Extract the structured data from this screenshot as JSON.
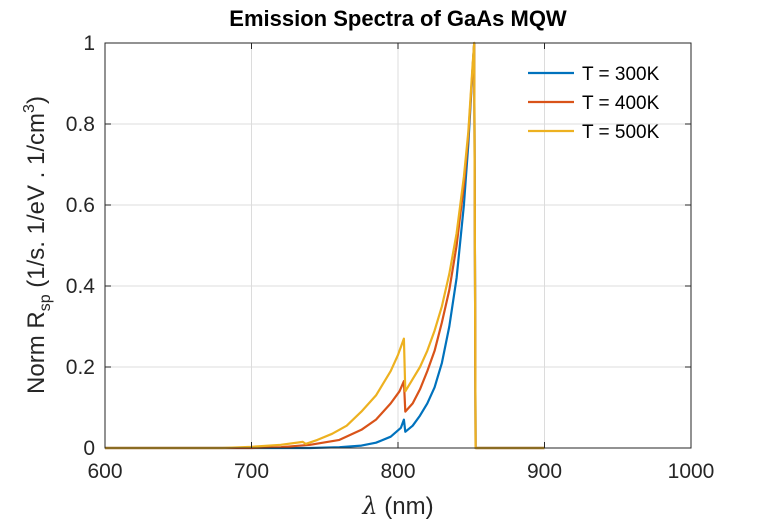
{
  "chart_data": {
    "type": "line",
    "title": "Emission Spectra of GaAs MQW",
    "xlabel": {
      "symbol": "λ",
      "text": " (nm)"
    },
    "ylabel": {
      "main": "Norm R",
      "sub": "sp",
      "units": "  (1/s. 1/eV . 1/cm",
      "units_sup": "3",
      "units_end": ")"
    },
    "xlim": [
      600,
      1000
    ],
    "ylim": [
      0,
      1
    ],
    "xticks": [
      600,
      700,
      800,
      900,
      1000
    ],
    "yticks": [
      0,
      0.2,
      0.4,
      0.6,
      0.8,
      1
    ],
    "ytick_labels": [
      "0",
      "0.2",
      "0.4",
      "0.6",
      "0.8",
      "1"
    ],
    "grid": true,
    "legend_position": "top-right",
    "series": [
      {
        "name": "T = 300K",
        "color": "#0072BD",
        "points": [
          [
            600,
            0
          ],
          [
            700,
            0
          ],
          [
            740,
            0
          ],
          [
            760,
            0.002
          ],
          [
            775,
            0.006
          ],
          [
            785,
            0.013
          ],
          [
            795,
            0.028
          ],
          [
            802,
            0.05
          ],
          [
            804,
            0.07
          ],
          [
            805,
            0.04
          ],
          [
            810,
            0.055
          ],
          [
            815,
            0.08
          ],
          [
            820,
            0.11
          ],
          [
            825,
            0.15
          ],
          [
            830,
            0.21
          ],
          [
            835,
            0.3
          ],
          [
            840,
            0.42
          ],
          [
            845,
            0.6
          ],
          [
            848,
            0.75
          ],
          [
            851,
            0.94
          ],
          [
            852,
            1.0
          ],
          [
            853,
            0
          ],
          [
            900,
            0
          ]
        ]
      },
      {
        "name": "T = 400K",
        "color": "#D95319",
        "points": [
          [
            600,
            0
          ],
          [
            700,
            0
          ],
          [
            720,
            0.002
          ],
          [
            740,
            0.008
          ],
          [
            760,
            0.02
          ],
          [
            775,
            0.045
          ],
          [
            785,
            0.07
          ],
          [
            795,
            0.11
          ],
          [
            801,
            0.14
          ],
          [
            804,
            0.165
          ],
          [
            805,
            0.09
          ],
          [
            810,
            0.11
          ],
          [
            815,
            0.145
          ],
          [
            820,
            0.19
          ],
          [
            825,
            0.24
          ],
          [
            830,
            0.31
          ],
          [
            835,
            0.39
          ],
          [
            840,
            0.5
          ],
          [
            845,
            0.65
          ],
          [
            848,
            0.77
          ],
          [
            851,
            0.94
          ],
          [
            852,
            1.0
          ],
          [
            853,
            0
          ],
          [
            900,
            0
          ]
        ]
      },
      {
        "name": "T = 500K",
        "color": "#EDB120",
        "points": [
          [
            600,
            0
          ],
          [
            680,
            0
          ],
          [
            700,
            0.003
          ],
          [
            720,
            0.008
          ],
          [
            735,
            0.015
          ],
          [
            737,
            0.01
          ],
          [
            745,
            0.02
          ],
          [
            755,
            0.035
          ],
          [
            765,
            0.055
          ],
          [
            775,
            0.09
          ],
          [
            785,
            0.13
          ],
          [
            795,
            0.19
          ],
          [
            800,
            0.23
          ],
          [
            804,
            0.27
          ],
          [
            805,
            0.14
          ],
          [
            810,
            0.17
          ],
          [
            815,
            0.2
          ],
          [
            820,
            0.24
          ],
          [
            825,
            0.29
          ],
          [
            830,
            0.35
          ],
          [
            835,
            0.43
          ],
          [
            840,
            0.53
          ],
          [
            845,
            0.67
          ],
          [
            848,
            0.78
          ],
          [
            851,
            0.95
          ],
          [
            852,
            1.0
          ],
          [
            853,
            0
          ],
          [
            900,
            0
          ]
        ]
      }
    ]
  }
}
